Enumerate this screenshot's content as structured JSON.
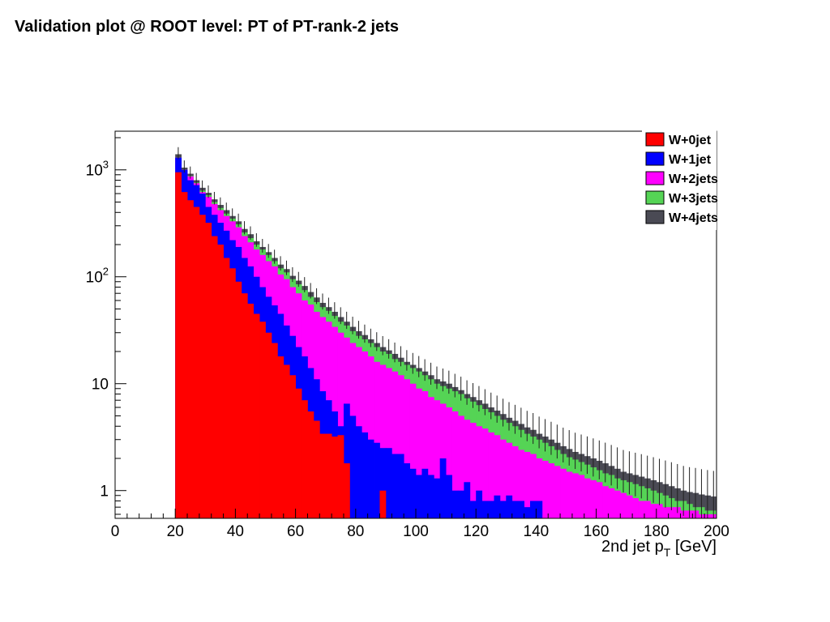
{
  "slide": {
    "title": "Validation plot @ ROOT level: PT of PT-rank-2 jets"
  },
  "chart_data": {
    "type": "bar",
    "stacked": true,
    "histogram": true,
    "xlabel": "2nd jet pT [GeV]",
    "xlabel_main": "2nd jet p",
    "xlabel_sub": "T",
    "xlabel_unit": " [GeV]",
    "ylabel": "",
    "yscale": "log",
    "xlim": [
      0,
      200
    ],
    "ylim": [
      0.55,
      2300
    ],
    "bin_width": 2,
    "x_tick_labels": [
      "0",
      "20",
      "40",
      "60",
      "80",
      "100",
      "120",
      "140",
      "160",
      "180",
      "200"
    ],
    "y_tick_labels": [
      {
        "value": 1,
        "base": "1",
        "exp": ""
      },
      {
        "value": 10,
        "base": "10",
        "exp": ""
      },
      {
        "value": 100,
        "base": "10",
        "exp": "2"
      },
      {
        "value": 1000,
        "base": "10",
        "exp": "3"
      }
    ],
    "legend_position": "top-right",
    "series": [
      {
        "name": "W+0jet",
        "color": "#ff0000",
        "totals": [
          950,
          620,
          520,
          450,
          380,
          320,
          240,
          200,
          150,
          120,
          90,
          70,
          56,
          45,
          38,
          30,
          24,
          18,
          15,
          12,
          9,
          7,
          5.5,
          4.5,
          3.4,
          3.4,
          3.2,
          3.3,
          1.8,
          0,
          0,
          0,
          0,
          0,
          1,
          0,
          0,
          0,
          0,
          0,
          0,
          0,
          0,
          0,
          0,
          0,
          0,
          0,
          0,
          0,
          0,
          0,
          0,
          0,
          0,
          0,
          0,
          0,
          0,
          0,
          0,
          0,
          0,
          0,
          0,
          0,
          0,
          0,
          0,
          0,
          0,
          0,
          0,
          0,
          0,
          0,
          0,
          0,
          0,
          0,
          0,
          0,
          0,
          0,
          0,
          0,
          0,
          0,
          0,
          0,
          0,
          0
        ]
      },
      {
        "name": "W+1jet",
        "color": "#0000ff",
        "totals": [
          1300,
          1000,
          800,
          720,
          600,
          450,
          380,
          320,
          270,
          220,
          190,
          150,
          125,
          100,
          80,
          65,
          54,
          45,
          35,
          28,
          22,
          18,
          14,
          11,
          8.5,
          7,
          5.5,
          4,
          6.5,
          5,
          4,
          3.5,
          3,
          2.8,
          2.5,
          2.5,
          2.2,
          2.2,
          1.8,
          1.6,
          1.4,
          1.6,
          1.4,
          1.3,
          2,
          1.4,
          1,
          1,
          1.2,
          0.8,
          1,
          0.8,
          0.8,
          0.9,
          0.8,
          0.9,
          0.8,
          0.8,
          0.7,
          0.8,
          0.8,
          0,
          0,
          0,
          0,
          0,
          0,
          0,
          0,
          0,
          0,
          0,
          0,
          0,
          0,
          0,
          0,
          0,
          0,
          0,
          0,
          0,
          0,
          0,
          0,
          0,
          0,
          0,
          0,
          0
        ]
      },
      {
        "name": "W+2jets",
        "color": "#ff00ff",
        "totals": [
          1300,
          1000,
          870,
          750,
          620,
          560,
          480,
          420,
          370,
          330,
          290,
          240,
          210,
          180,
          160,
          140,
          125,
          105,
          95,
          80,
          70,
          60,
          55,
          47,
          42,
          38,
          34,
          30,
          27,
          24,
          22,
          20,
          18,
          16,
          15,
          14,
          13,
          12,
          11,
          10,
          9,
          8.5,
          7.5,
          7,
          6.5,
          6,
          5.5,
          5,
          4.6,
          4.3,
          4,
          3.8,
          3.5,
          3.3,
          3,
          2.8,
          2.6,
          2.4,
          2.3,
          2.2,
          2,
          1.9,
          1.8,
          1.7,
          1.6,
          1.5,
          1.45,
          1.4,
          1.3,
          1.25,
          1.2,
          1.1,
          1.05,
          1,
          0.95,
          0.9,
          0.85,
          0.8,
          0.8,
          0.75,
          0.75,
          0.7,
          0.7,
          0.7,
          0.65,
          0.65,
          0.65,
          0.6,
          0.6,
          0.6
        ]
      },
      {
        "name": "W+3jets",
        "color": "#55d455",
        "totals": [
          1300,
          1000,
          880,
          760,
          640,
          580,
          500,
          440,
          390,
          350,
          310,
          260,
          230,
          200,
          180,
          160,
          140,
          120,
          110,
          95,
          85,
          75,
          65,
          58,
          52,
          48,
          43,
          38,
          35,
          31,
          28,
          26,
          24,
          22,
          20,
          19,
          17,
          16,
          15,
          14,
          13,
          12,
          11,
          10,
          9.5,
          9,
          8.5,
          8,
          7.3,
          6.8,
          6.3,
          5.8,
          5.4,
          5,
          4.6,
          4.3,
          4,
          3.7,
          3.4,
          3.2,
          3,
          2.8,
          2.6,
          2.4,
          2.2,
          2.05,
          1.95,
          1.85,
          1.75,
          1.65,
          1.55,
          1.45,
          1.4,
          1.3,
          1.25,
          1.2,
          1.15,
          1.1,
          1.05,
          1,
          0.95,
          0.9,
          0.85,
          0.8,
          0.8,
          0.75,
          0.7,
          0.7,
          0.65,
          0.65
        ]
      },
      {
        "name": "W+4jets",
        "color": "#4a4a54",
        "totals": [
          1400,
          1050,
          920,
          800,
          680,
          610,
          530,
          470,
          420,
          370,
          330,
          280,
          250,
          215,
          190,
          170,
          150,
          130,
          118,
          102,
          92,
          82,
          72,
          64,
          57,
          52,
          47,
          42,
          38,
          34,
          31,
          28.5,
          26,
          24,
          22,
          20.5,
          19,
          17.5,
          16,
          15,
          14,
          13,
          12,
          11,
          10.5,
          10,
          9.3,
          8.7,
          8,
          7.5,
          7,
          6.5,
          6,
          5.6,
          5.2,
          4.8,
          4.5,
          4.2,
          3.9,
          3.7,
          3.4,
          3.2,
          3,
          2.8,
          2.6,
          2.45,
          2.3,
          2.2,
          2.1,
          2,
          1.9,
          1.8,
          1.7,
          1.6,
          1.5,
          1.45,
          1.4,
          1.35,
          1.3,
          1.25,
          1.2,
          1.15,
          1.1,
          1.05,
          1,
          0.97,
          0.95,
          0.92,
          0.9,
          0.88
        ]
      }
    ]
  }
}
